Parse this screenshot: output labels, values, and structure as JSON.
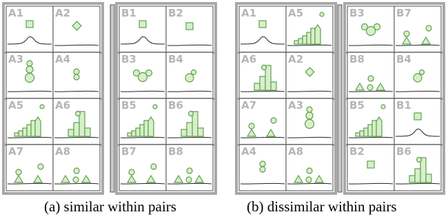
{
  "panels": {
    "a": {
      "caption": "(a) similar within pairs",
      "left": [
        [
          "A1",
          "A2"
        ],
        [
          "A3",
          "A4"
        ],
        [
          "A5",
          "A6"
        ],
        [
          "A7",
          "A8"
        ]
      ],
      "right": [
        [
          "B1",
          "B2"
        ],
        [
          "B3",
          "B4"
        ],
        [
          "B5",
          "B6"
        ],
        [
          "B7",
          "B8"
        ]
      ]
    },
    "b": {
      "caption": "(b) dissimilar within pairs",
      "left": [
        [
          "A1",
          "A5"
        ],
        [
          "A6",
          "A2"
        ],
        [
          "A7",
          "A3"
        ],
        [
          "A4",
          "A8"
        ]
      ],
      "right": [
        [
          "B3",
          "B7"
        ],
        [
          "B8",
          "B4"
        ],
        [
          "B5",
          "B1"
        ],
        [
          "B2",
          "B6"
        ]
      ]
    }
  },
  "tile_glyphs": {
    "A1": "square-bump",
    "A2": "diamond",
    "A3": "circle-stack-3",
    "A4": "circle-stack-2",
    "A5": "bars-rising",
    "A6": "bars-mixed",
    "A7": "circles-triangles",
    "A8": "triangles-circles",
    "B1": "square-bump",
    "B2": "square",
    "B3": "circle-cluster",
    "B4": "circle-pair",
    "B5": "bars-rising",
    "B6": "bars-mixed",
    "B7": "circles-triangles",
    "B8": "triangles-circles"
  },
  "colors": {
    "glyph_fill": "#d7f0c9",
    "glyph_stroke": "#5f9e4f",
    "frame": "#a8a8a8",
    "label": "#b5b5b5",
    "divider_fill": "#c8c8c8",
    "divider_stroke": "#555555"
  }
}
